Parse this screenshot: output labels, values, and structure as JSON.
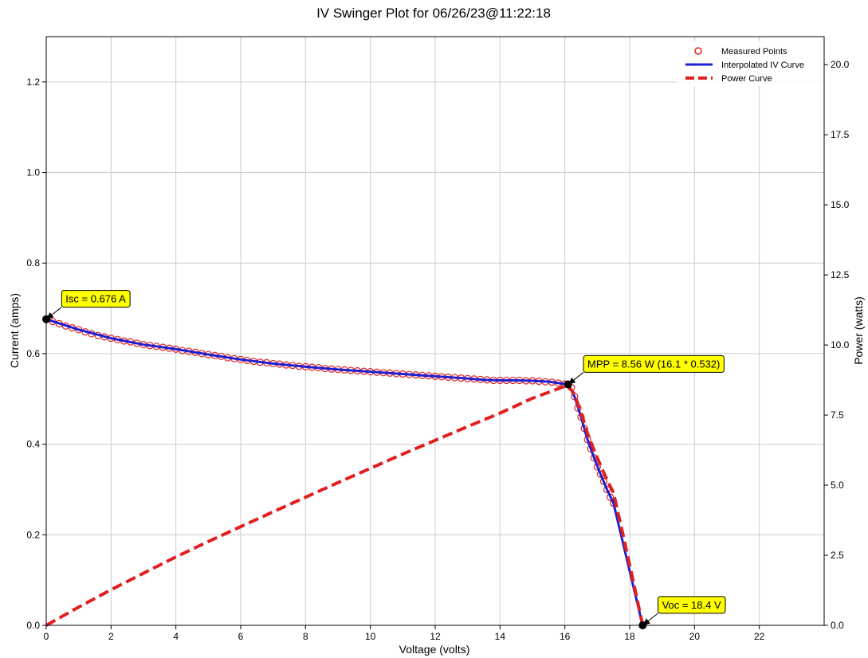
{
  "chart_data": {
    "type": "line",
    "title": "IV Swinger Plot for 06/26/23@11:22:18",
    "xlabel": "Voltage (volts)",
    "ylabel": "Current (amps)",
    "y2label": "Power (watts)",
    "xlim": [
      0,
      24
    ],
    "ylim": [
      0,
      1.3
    ],
    "y2lim": [
      0,
      21
    ],
    "grid": true,
    "legend_position": "top-right",
    "xticks": [
      {
        "value": 0,
        "label": "0"
      },
      {
        "value": 2,
        "label": "2"
      },
      {
        "value": 4,
        "label": "4"
      },
      {
        "value": 6,
        "label": "6"
      },
      {
        "value": 8,
        "label": "8"
      },
      {
        "value": 10,
        "label": "10"
      },
      {
        "value": 12,
        "label": "12"
      },
      {
        "value": 14,
        "label": "14"
      },
      {
        "value": 16,
        "label": "16"
      },
      {
        "value": 18,
        "label": "18"
      },
      {
        "value": 20,
        "label": "20"
      },
      {
        "value": 22,
        "label": "22"
      }
    ],
    "yticks": [
      {
        "value": 0.0,
        "label": "0.0"
      },
      {
        "value": 0.2,
        "label": "0.2"
      },
      {
        "value": 0.4,
        "label": "0.4"
      },
      {
        "value": 0.6,
        "label": "0.6"
      },
      {
        "value": 0.8,
        "label": "0.8"
      },
      {
        "value": 1.0,
        "label": "1.0"
      },
      {
        "value": 1.2,
        "label": "1.2"
      }
    ],
    "y2ticks": [
      {
        "value": 0.0,
        "label": "0.0"
      },
      {
        "value": 2.5,
        "label": "2.5"
      },
      {
        "value": 5.0,
        "label": "5.0"
      },
      {
        "value": 7.5,
        "label": "7.5"
      },
      {
        "value": 10.0,
        "label": "10.0"
      },
      {
        "value": 12.5,
        "label": "12.5"
      },
      {
        "value": 15.0,
        "label": "15.0"
      },
      {
        "value": 17.5,
        "label": "17.5"
      },
      {
        "value": 20.0,
        "label": "20.0"
      }
    ],
    "series": [
      {
        "name": "Measured Points",
        "kind": "scatter",
        "axis": "left",
        "color": "#e02020",
        "marker": "open-circle",
        "x": [
          0.0,
          0.2,
          0.4,
          0.6,
          0.8,
          1.0,
          1.2,
          1.4,
          1.6,
          1.8,
          2.0,
          2.2,
          2.4,
          2.6,
          2.8,
          3.0,
          3.2,
          3.4,
          3.6,
          3.8,
          4.0,
          4.2,
          4.4,
          4.6,
          4.8,
          5.0,
          5.2,
          5.4,
          5.6,
          5.8,
          6.0,
          6.2,
          6.4,
          6.6,
          6.8,
          7.0,
          7.2,
          7.4,
          7.6,
          7.8,
          8.0,
          8.2,
          8.4,
          8.6,
          8.8,
          9.0,
          9.2,
          9.4,
          9.6,
          9.8,
          10.0,
          10.2,
          10.4,
          10.6,
          10.8,
          11.0,
          11.2,
          11.4,
          11.6,
          11.8,
          12.0,
          12.2,
          12.4,
          12.6,
          12.8,
          13.0,
          13.2,
          13.4,
          13.6,
          13.8,
          14.0,
          14.2,
          14.4,
          14.6,
          14.8,
          15.0,
          15.2,
          15.4,
          15.6,
          15.8,
          16.0,
          16.1,
          16.2,
          16.3,
          16.4,
          16.5,
          16.6,
          16.7,
          16.8,
          16.9,
          17.0,
          17.1,
          17.2,
          17.3,
          17.4,
          17.5
        ],
        "y": [
          0.676,
          0.671,
          0.666,
          0.661,
          0.657,
          0.653,
          0.648,
          0.644,
          0.64,
          0.637,
          0.634,
          0.631,
          0.628,
          0.626,
          0.623,
          0.62,
          0.618,
          0.616,
          0.614,
          0.612,
          0.61,
          0.607,
          0.605,
          0.603,
          0.6,
          0.598,
          0.596,
          0.594,
          0.591,
          0.589,
          0.587,
          0.585,
          0.583,
          0.581,
          0.58,
          0.578,
          0.577,
          0.575,
          0.574,
          0.572,
          0.571,
          0.57,
          0.569,
          0.567,
          0.566,
          0.565,
          0.564,
          0.563,
          0.562,
          0.561,
          0.56,
          0.559,
          0.558,
          0.557,
          0.556,
          0.555,
          0.554,
          0.553,
          0.552,
          0.551,
          0.55,
          0.549,
          0.548,
          0.547,
          0.546,
          0.545,
          0.544,
          0.543,
          0.542,
          0.541,
          0.541,
          0.541,
          0.541,
          0.541,
          0.54,
          0.54,
          0.539,
          0.538,
          0.537,
          0.535,
          0.533,
          0.532,
          0.525,
          0.505,
          0.48,
          0.46,
          0.435,
          0.41,
          0.39,
          0.37,
          0.35,
          0.334,
          0.318,
          0.3,
          0.283,
          0.27
        ]
      },
      {
        "name": "Interpolated IV Curve",
        "kind": "line",
        "axis": "left",
        "color": "#1f1fd0",
        "x": [
          0,
          1,
          2,
          3,
          4,
          5,
          6,
          7,
          8,
          9,
          10,
          11,
          12,
          13,
          13.5,
          14,
          14.5,
          15,
          15.5,
          16,
          16.1,
          16.3,
          16.5,
          16.7,
          16.9,
          17.1,
          17.3,
          17.5,
          17.8,
          18.1,
          18.4
        ],
        "y": [
          0.676,
          0.653,
          0.634,
          0.62,
          0.61,
          0.598,
          0.587,
          0.578,
          0.571,
          0.565,
          0.56,
          0.555,
          0.55,
          0.545,
          0.542,
          0.541,
          0.541,
          0.54,
          0.538,
          0.533,
          0.532,
          0.505,
          0.46,
          0.41,
          0.37,
          0.334,
          0.3,
          0.27,
          0.18,
          0.09,
          0.0
        ]
      },
      {
        "name": "Power Curve",
        "kind": "line",
        "axis": "right",
        "color": "#e02020",
        "dashed": true,
        "x": [
          0,
          1,
          2,
          3,
          4,
          5,
          6,
          7,
          8,
          9,
          10,
          11,
          12,
          13,
          14,
          15,
          16,
          16.1,
          16.3,
          16.5,
          16.7,
          16.9,
          17.1,
          17.3,
          17.5,
          17.8,
          18.1,
          18.4
        ],
        "y": [
          0.0,
          0.65,
          1.27,
          1.86,
          2.44,
          2.99,
          3.52,
          4.05,
          4.57,
          5.09,
          5.6,
          6.11,
          6.6,
          7.09,
          7.57,
          8.1,
          8.53,
          8.56,
          8.23,
          7.59,
          6.85,
          6.25,
          5.71,
          5.19,
          4.73,
          3.2,
          1.63,
          0.0
        ]
      }
    ],
    "annotations": [
      {
        "label": "Isc = 0.676 A",
        "x": 0.0,
        "y": 0.676,
        "text_x": 0.45,
        "text_y": 0.722
      },
      {
        "label": "MPP = 8.56 W (16.1 * 0.532)",
        "x": 16.1,
        "y": 0.532,
        "text_x": 16.55,
        "text_y": 0.578
      },
      {
        "label": "Voc = 18.4 V",
        "x": 18.4,
        "y": 0.0,
        "text_x": 18.85,
        "text_y": 0.046
      }
    ]
  }
}
